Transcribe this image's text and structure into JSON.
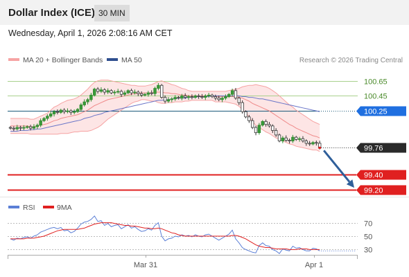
{
  "header": {
    "title": "Dollar Index (ICE)",
    "timeframe": "30 MIN"
  },
  "datetime": "Wednesday, April 1, 2026 2:08:16 AM CET",
  "legend": {
    "bb": "MA 20 + Bollinger Bands",
    "ma50": "MA 50",
    "credit": "Research © 2026 Trading Central"
  },
  "rsi_legend": {
    "rsi": "RSI",
    "ma": "9MA"
  },
  "colors": {
    "up": "#2e8b2e",
    "down": "#333333",
    "bb": "#f6a3a3",
    "bbfill": "#fde5e5",
    "ma50": "#6a76c8",
    "resist": "#a8d08d",
    "pivot": "#1f6fe0",
    "support": "#e02020",
    "arrow": "#2f5f9a",
    "rsi": "#5b7fd6",
    "rsima": "#e02020"
  },
  "chart_data": [
    {
      "type": "candlestick",
      "title": "Dollar Index (ICE)",
      "ylim": [
        99.1,
        100.85
      ],
      "x_ticks": [
        "Mar 31",
        "Apr 1"
      ],
      "levels": [
        {
          "value": 100.65,
          "label": "100.65",
          "kind": "resistance"
        },
        {
          "value": 100.45,
          "label": "100.45",
          "kind": "resistance"
        },
        {
          "value": 100.25,
          "label": "100.25",
          "kind": "pivot"
        },
        {
          "value": 99.76,
          "label": "99.76",
          "kind": "last"
        },
        {
          "value": 99.4,
          "label": "99.40",
          "kind": "support"
        },
        {
          "value": 99.2,
          "label": "99.20",
          "kind": "support"
        }
      ],
      "target_arrow": {
        "from": 99.76,
        "to": 99.2
      },
      "close": [
        100.02,
        100.01,
        100.03,
        100.02,
        100.03,
        100.04,
        100.02,
        100.04,
        100.06,
        100.12,
        100.15,
        100.18,
        100.21,
        100.24,
        100.23,
        100.26,
        100.24,
        100.25,
        100.23,
        100.24,
        100.27,
        100.33,
        100.37,
        100.4,
        100.46,
        100.54,
        100.51,
        100.53,
        100.5,
        100.52,
        100.49,
        100.5,
        100.51,
        100.47,
        100.49,
        100.52,
        100.49,
        100.5,
        100.48,
        100.46,
        100.47,
        100.49,
        100.48,
        100.55,
        100.59,
        100.43,
        100.38,
        100.4,
        100.41,
        100.43,
        100.42,
        100.45,
        100.43,
        100.44,
        100.43,
        100.45,
        100.44,
        100.43,
        100.45,
        100.46,
        100.44,
        100.42,
        100.4,
        100.42,
        100.44,
        100.47,
        100.52,
        100.42,
        100.36,
        100.24,
        100.17,
        100.12,
        100.03,
        99.96,
        100.06,
        100.11,
        100.07,
        100.05,
        99.99,
        99.93,
        99.85,
        99.89,
        99.86,
        99.85,
        99.9,
        99.87,
        99.88,
        99.85,
        99.82,
        99.81,
        99.83,
        99.82,
        99.76
      ],
      "ma20": [
        100.05,
        100.05,
        100.05,
        100.05,
        100.05,
        100.05,
        100.04,
        100.04,
        100.05,
        100.06,
        100.07,
        100.08,
        100.1,
        100.12,
        100.13,
        100.15,
        100.16,
        100.17,
        100.18,
        100.19,
        100.2,
        100.22,
        100.24,
        100.26,
        100.29,
        100.32,
        100.34,
        100.36,
        100.38,
        100.4,
        100.41,
        100.42,
        100.43,
        100.44,
        100.45,
        100.46,
        100.47,
        100.48,
        100.48,
        100.49,
        100.49,
        100.49,
        100.49,
        100.5,
        100.5,
        100.5,
        100.49,
        100.49,
        100.48,
        100.48,
        100.47,
        100.46,
        100.46,
        100.45,
        100.45,
        100.45,
        100.45,
        100.45,
        100.45,
        100.45,
        100.45,
        100.44,
        100.44,
        100.44,
        100.44,
        100.44,
        100.44,
        100.44,
        100.43,
        100.42,
        100.4,
        100.38,
        100.35,
        100.33,
        100.31,
        100.29,
        100.27,
        100.25,
        100.22,
        100.19,
        100.16,
        100.13,
        100.1,
        100.07,
        100.05,
        100.02,
        100.0,
        99.98,
        99.96,
        99.94,
        99.92,
        99.91,
        99.89
      ],
      "ma50": [
        99.98,
        99.98,
        99.98,
        99.99,
        99.99,
        99.99,
        100.0,
        100.0,
        100.01,
        100.01,
        100.02,
        100.03,
        100.04,
        100.05,
        100.06,
        100.07,
        100.08,
        100.09,
        100.1,
        100.11,
        100.12,
        100.13,
        100.15,
        100.16,
        100.17,
        100.19,
        100.2,
        100.21,
        100.23,
        100.24,
        100.25,
        100.26,
        100.27,
        100.28,
        100.29,
        100.3,
        100.31,
        100.32,
        100.33,
        100.34,
        100.35,
        100.36,
        100.37,
        100.38,
        100.39,
        100.39,
        100.4,
        100.4,
        100.41,
        100.41,
        100.42,
        100.42,
        100.42,
        100.43,
        100.43,
        100.43,
        100.44,
        100.44,
        100.44,
        100.44,
        100.45,
        100.45,
        100.45,
        100.45,
        100.45,
        100.45,
        100.45,
        100.45,
        100.45,
        100.44,
        100.44,
        100.43,
        100.43,
        100.42,
        100.41,
        100.41,
        100.4,
        100.39,
        100.38,
        100.37,
        100.36,
        100.35,
        100.34,
        100.33,
        100.32,
        100.31,
        100.3,
        100.29,
        100.28,
        100.27,
        100.26,
        100.25,
        100.24
      ],
      "bb_width": [
        0.1,
        0.1,
        0.1,
        0.1,
        0.1,
        0.1,
        0.1,
        0.1,
        0.11,
        0.12,
        0.13,
        0.14,
        0.16,
        0.18,
        0.19,
        0.2,
        0.21,
        0.22,
        0.22,
        0.22,
        0.23,
        0.24,
        0.26,
        0.28,
        0.3,
        0.31,
        0.31,
        0.3,
        0.28,
        0.26,
        0.24,
        0.22,
        0.2,
        0.18,
        0.16,
        0.14,
        0.12,
        0.11,
        0.1,
        0.09,
        0.09,
        0.1,
        0.11,
        0.12,
        0.14,
        0.15,
        0.14,
        0.13,
        0.12,
        0.11,
        0.1,
        0.09,
        0.08,
        0.07,
        0.06,
        0.06,
        0.06,
        0.06,
        0.06,
        0.06,
        0.06,
        0.07,
        0.07,
        0.07,
        0.07,
        0.08,
        0.09,
        0.1,
        0.12,
        0.15,
        0.18,
        0.21,
        0.24,
        0.27,
        0.28,
        0.29,
        0.3,
        0.3,
        0.3,
        0.3,
        0.29,
        0.28,
        0.27,
        0.26,
        0.25,
        0.24,
        0.23,
        0.22,
        0.21,
        0.2,
        0.19,
        0.18,
        0.18
      ]
    },
    {
      "type": "line",
      "title": "RSI",
      "ylim": [
        18,
        82
      ],
      "y_ticks": [
        70,
        50,
        30
      ],
      "series": [
        {
          "name": "RSI",
          "values": [
            46,
            44,
            47,
            46,
            48,
            49,
            47,
            50,
            52,
            56,
            58,
            60,
            62,
            63,
            61,
            63,
            58,
            59,
            55,
            57,
            62,
            68,
            71,
            72,
            75,
            80,
            72,
            73,
            66,
            69,
            64,
            66,
            67,
            61,
            64,
            67,
            62,
            64,
            60,
            57,
            58,
            61,
            59,
            66,
            70,
            50,
            43,
            46,
            47,
            50,
            49,
            52,
            50,
            51,
            49,
            52,
            50,
            49,
            52,
            53,
            50,
            47,
            44,
            47,
            50,
            53,
            59,
            46,
            40,
            33,
            30,
            28,
            26,
            25,
            36,
            40,
            36,
            35,
            30,
            28,
            24,
            31,
            29,
            28,
            35,
            32,
            33,
            30,
            28,
            28,
            32,
            31,
            28
          ]
        },
        {
          "name": "9MA",
          "values": [
            46,
            46,
            46,
            46,
            46,
            47,
            47,
            47,
            48,
            49,
            50,
            52,
            54,
            56,
            58,
            59,
            60,
            60,
            60,
            60,
            60,
            61,
            62,
            64,
            66,
            68,
            69,
            70,
            70,
            70,
            70,
            69,
            68,
            67,
            66,
            66,
            65,
            65,
            64,
            63,
            62,
            62,
            61,
            61,
            62,
            61,
            59,
            57,
            55,
            54,
            52,
            51,
            50,
            50,
            50,
            50,
            50,
            50,
            50,
            50,
            50,
            50,
            50,
            50,
            50,
            50,
            51,
            51,
            50,
            48,
            46,
            43,
            40,
            37,
            35,
            34,
            33,
            33,
            32,
            31,
            31,
            31,
            31,
            30,
            30,
            30,
            31,
            31,
            31,
            30,
            30,
            30,
            30
          ]
        }
      ]
    }
  ]
}
